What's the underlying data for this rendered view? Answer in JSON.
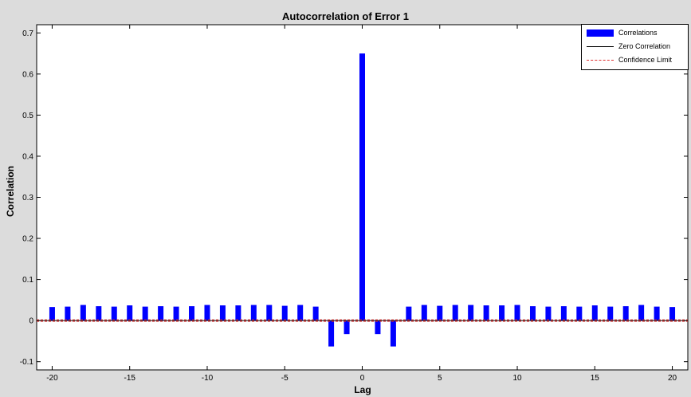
{
  "chart_data": {
    "type": "bar",
    "title": "Autocorrelation of Error 1",
    "xlabel": "Lag",
    "ylabel": "Correlation",
    "xlim": [
      -21,
      21
    ],
    "ylim": [
      -0.12,
      0.72
    ],
    "xticks": [
      -20,
      -15,
      -10,
      -5,
      0,
      5,
      10,
      15,
      20
    ],
    "xtick_labels": [
      "-20",
      "-15",
      "-10",
      "-5",
      "0",
      "5",
      "10",
      "15",
      "20"
    ],
    "yticks": [
      -0.1,
      0,
      0.1,
      0.2,
      0.3,
      0.4,
      0.5,
      0.6,
      0.7
    ],
    "ytick_labels": [
      "-0.1",
      "0",
      "0.1",
      "0.2",
      "0.3",
      "0.4",
      "0.5",
      "0.6",
      "0.7"
    ],
    "grid": false,
    "legend_position": "top-right",
    "lags": [
      -20,
      -19,
      -18,
      -17,
      -16,
      -15,
      -14,
      -13,
      -12,
      -11,
      -10,
      -9,
      -8,
      -7,
      -6,
      -5,
      -4,
      -3,
      -2,
      -1,
      0,
      1,
      2,
      3,
      4,
      5,
      6,
      7,
      8,
      9,
      10,
      11,
      12,
      13,
      14,
      15,
      16,
      17,
      18,
      19,
      20
    ],
    "series": [
      {
        "name": "Correlations",
        "color": "#0000ff",
        "values": [
          0.033,
          0.034,
          0.038,
          0.035,
          0.034,
          0.037,
          0.034,
          0.035,
          0.034,
          0.035,
          0.038,
          0.037,
          0.037,
          0.038,
          0.038,
          0.036,
          0.038,
          0.034,
          -0.063,
          -0.033,
          0.65,
          -0.033,
          -0.063,
          0.034,
          0.038,
          0.036,
          0.038,
          0.038,
          0.037,
          0.037,
          0.038,
          0.035,
          0.034,
          0.035,
          0.034,
          0.037,
          0.034,
          0.035,
          0.038,
          0.034,
          0.033
        ]
      },
      {
        "name": "Zero Correlation",
        "color": "#000000",
        "value": 0
      },
      {
        "name": "Confidence Limit",
        "color": "#e03030",
        "values": [
          0.002,
          -0.002
        ]
      }
    ]
  }
}
